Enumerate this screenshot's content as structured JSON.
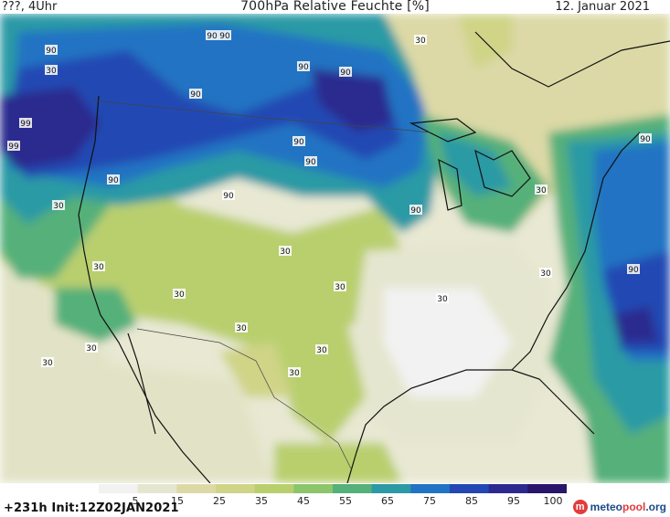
{
  "header": {
    "left": "???, 4Uhr",
    "title": "700hPa Relative Feuchte [%]",
    "date": "12. Januar 2021"
  },
  "colorbar": {
    "ticks": [
      "5",
      "15",
      "25",
      "35",
      "45",
      "55",
      "65",
      "75",
      "85",
      "95",
      "100"
    ],
    "colors": [
      "#f2f2f2",
      "#e5e6cf",
      "#dcd9a6",
      "#cfd487",
      "#b9cf6e",
      "#8cc56a",
      "#55b07a",
      "#2b9aa5",
      "#2173c3",
      "#2348b3",
      "#2c2a8f",
      "#28166b"
    ]
  },
  "footer": {
    "run_info": "+231h  Init:12Z02JAN2021",
    "brand_prefix": "meteo",
    "brand_mid": "pool",
    "brand_suffix": ".org"
  },
  "contour_labels": [
    "90",
    "90",
    "90",
    "30",
    "90",
    "90",
    "90",
    "99",
    "99",
    "90",
    "90",
    "90",
    "90",
    "90",
    "30",
    "30",
    "30",
    "30",
    "30",
    "30",
    "30",
    "30",
    "30",
    "30",
    "30",
    "90",
    "90",
    "30",
    "30",
    "30"
  ]
}
